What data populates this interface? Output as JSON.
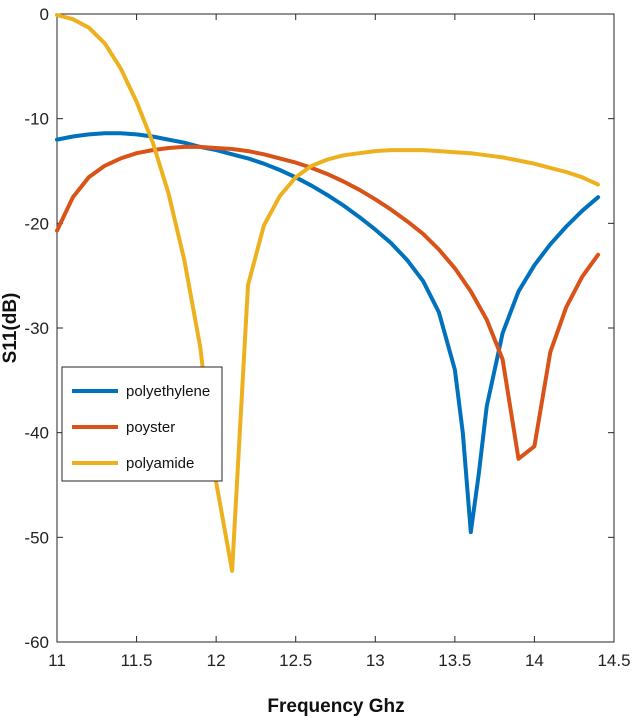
{
  "chart_data": {
    "type": "line",
    "title": "",
    "xlabel": "Frequency Ghz",
    "ylabel": "S11(dB)",
    "xlim": [
      11,
      14.5
    ],
    "ylim": [
      -60,
      0
    ],
    "xticks": [
      11,
      11.5,
      12,
      12.5,
      13,
      13.5,
      14,
      14.5
    ],
    "xtick_labels": [
      "11",
      "11.5",
      "12",
      "12.5",
      "13",
      "13.5",
      "14",
      "14.5"
    ],
    "yticks": [
      0,
      -10,
      -20,
      -30,
      -40,
      -50,
      -60
    ],
    "ytick_labels": [
      "0",
      "-10",
      "-20",
      "-30",
      "-40",
      "-50",
      "-60"
    ],
    "grid": false,
    "legend_position": "left-middle",
    "series": [
      {
        "name": "polyethylene",
        "color": "#0072BD",
        "x": [
          11.0,
          11.1,
          11.2,
          11.3,
          11.4,
          11.5,
          11.6,
          11.7,
          11.8,
          11.9,
          12.0,
          12.1,
          12.2,
          12.3,
          12.4,
          12.5,
          12.6,
          12.7,
          12.8,
          12.9,
          13.0,
          13.1,
          13.2,
          13.3,
          13.4,
          13.5,
          13.55,
          13.6,
          13.65,
          13.7,
          13.8,
          13.9,
          14.0,
          14.1,
          14.2,
          14.3,
          14.4
        ],
        "y": [
          -12.0,
          -11.7,
          -11.5,
          -11.4,
          -11.4,
          -11.5,
          -11.7,
          -12.0,
          -12.3,
          -12.7,
          -13.0,
          -13.4,
          -13.8,
          -14.3,
          -14.9,
          -15.6,
          -16.4,
          -17.3,
          -18.3,
          -19.4,
          -20.6,
          -21.9,
          -23.5,
          -25.5,
          -28.5,
          -34.0,
          -40.0,
          -49.5,
          -44.0,
          -37.5,
          -30.5,
          -26.5,
          -24.0,
          -22.0,
          -20.3,
          -18.8,
          -17.5
        ]
      },
      {
        "name": "poyster",
        "color": "#D95319",
        "x": [
          11.0,
          11.1,
          11.2,
          11.3,
          11.4,
          11.5,
          11.6,
          11.7,
          11.8,
          11.9,
          12.0,
          12.1,
          12.2,
          12.3,
          12.4,
          12.5,
          12.6,
          12.7,
          12.8,
          12.9,
          13.0,
          13.1,
          13.2,
          13.3,
          13.4,
          13.5,
          13.6,
          13.7,
          13.8,
          13.9,
          14.0,
          14.1,
          14.2,
          14.3,
          14.4
        ],
        "y": [
          -20.7,
          -17.5,
          -15.6,
          -14.5,
          -13.8,
          -13.3,
          -13.0,
          -12.8,
          -12.7,
          -12.7,
          -12.8,
          -12.9,
          -13.1,
          -13.4,
          -13.8,
          -14.2,
          -14.7,
          -15.3,
          -16.0,
          -16.8,
          -17.7,
          -18.7,
          -19.8,
          -21.0,
          -22.5,
          -24.3,
          -26.5,
          -29.2,
          -33.0,
          -42.5,
          -41.3,
          -32.3,
          -28.0,
          -25.1,
          -23.0
        ]
      },
      {
        "name": "polyamide",
        "color": "#EDB120",
        "x": [
          11.0,
          11.1,
          11.2,
          11.3,
          11.4,
          11.5,
          11.6,
          11.7,
          11.8,
          11.9,
          12.0,
          12.1,
          12.2,
          12.3,
          12.4,
          12.5,
          12.6,
          12.7,
          12.8,
          12.9,
          13.0,
          13.1,
          13.2,
          13.3,
          13.4,
          13.5,
          13.6,
          13.7,
          13.8,
          13.9,
          14.0,
          14.1,
          14.2,
          14.3,
          14.4
        ],
        "y": [
          -0.1,
          -0.5,
          -1.3,
          -2.8,
          -5.2,
          -8.4,
          -12.2,
          -17.1,
          -23.5,
          -31.8,
          -44.7,
          -53.2,
          -25.9,
          -20.2,
          -17.4,
          -15.6,
          -14.5,
          -13.9,
          -13.5,
          -13.3,
          -13.1,
          -13.0,
          -13.0,
          -13.0,
          -13.1,
          -13.2,
          -13.3,
          -13.5,
          -13.7,
          -14.0,
          -14.3,
          -14.7,
          -15.1,
          -15.6,
          -16.3
        ]
      }
    ]
  }
}
